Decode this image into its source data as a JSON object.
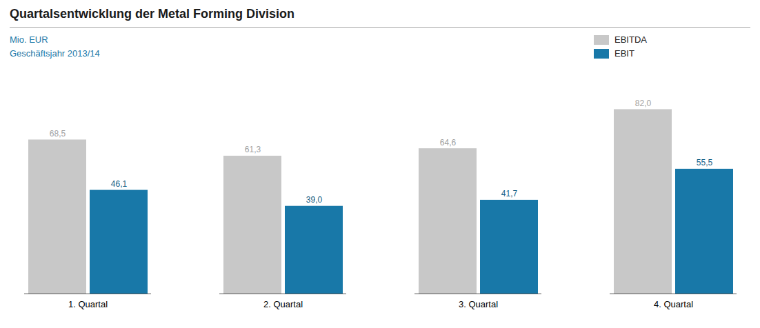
{
  "chart_data": {
    "type": "bar",
    "title": "Quartalsentwicklung der Metal Forming Division",
    "subtitle": [
      "Mio. EUR",
      "Geschäftsjahr 2013/14"
    ],
    "categories": [
      "1. Quartal",
      "2. Quartal",
      "3. Quartal",
      "4. Quartal"
    ],
    "series": [
      {
        "name": "EBITDA",
        "color": "#c8c8c8",
        "values": [
          68.5,
          61.3,
          64.6,
          82.0
        ],
        "value_labels": [
          "68,5",
          "61,3",
          "64,6",
          "82,0"
        ]
      },
      {
        "name": "EBIT",
        "color": "#1878a8",
        "values": [
          46.1,
          39.0,
          41.7,
          55.5
        ],
        "value_labels": [
          "46,1",
          "39,0",
          "41,7",
          "55,5"
        ]
      }
    ],
    "ylim": [
      0,
      95
    ],
    "grid": false,
    "legend": "upper right",
    "data_labels": true,
    "tick_labels": "x"
  }
}
